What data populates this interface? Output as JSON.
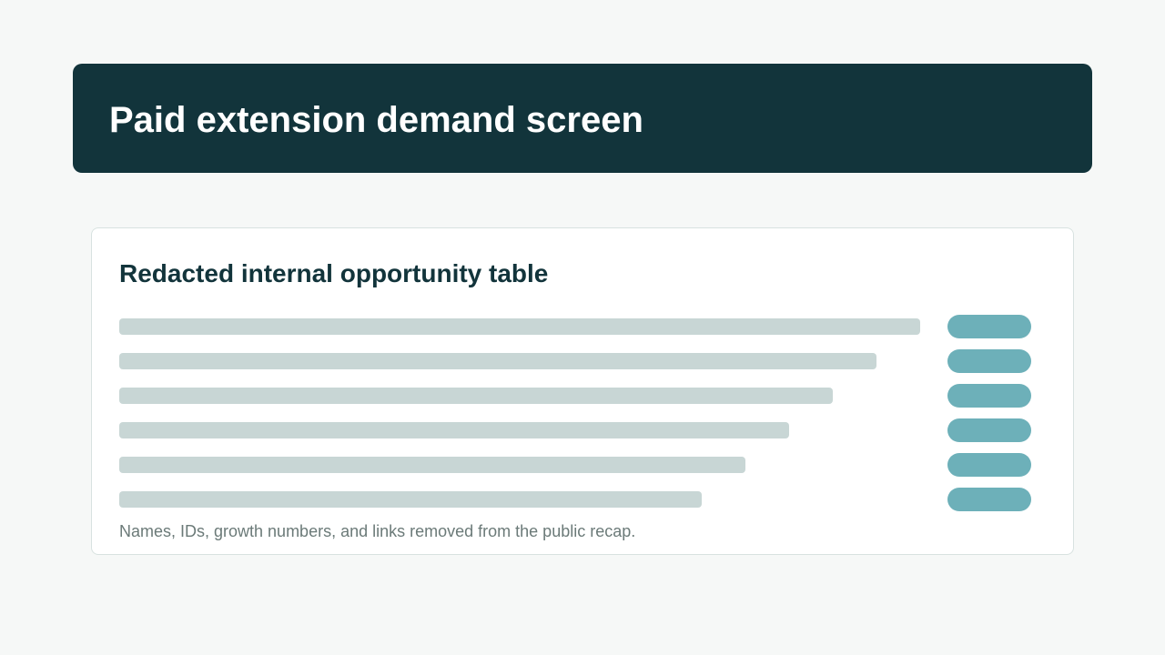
{
  "header": {
    "title": "Paid extension demand screen"
  },
  "card": {
    "title": "Redacted internal opportunity table",
    "footnote": "Names, IDs, growth numbers, and links removed from the public recap.",
    "rows": 6
  },
  "colors": {
    "header_bg": "#12343b",
    "page_bg": "#f6f8f7",
    "redaction_bar": "#c8d6d5",
    "status_pill": "#6db0b9"
  }
}
